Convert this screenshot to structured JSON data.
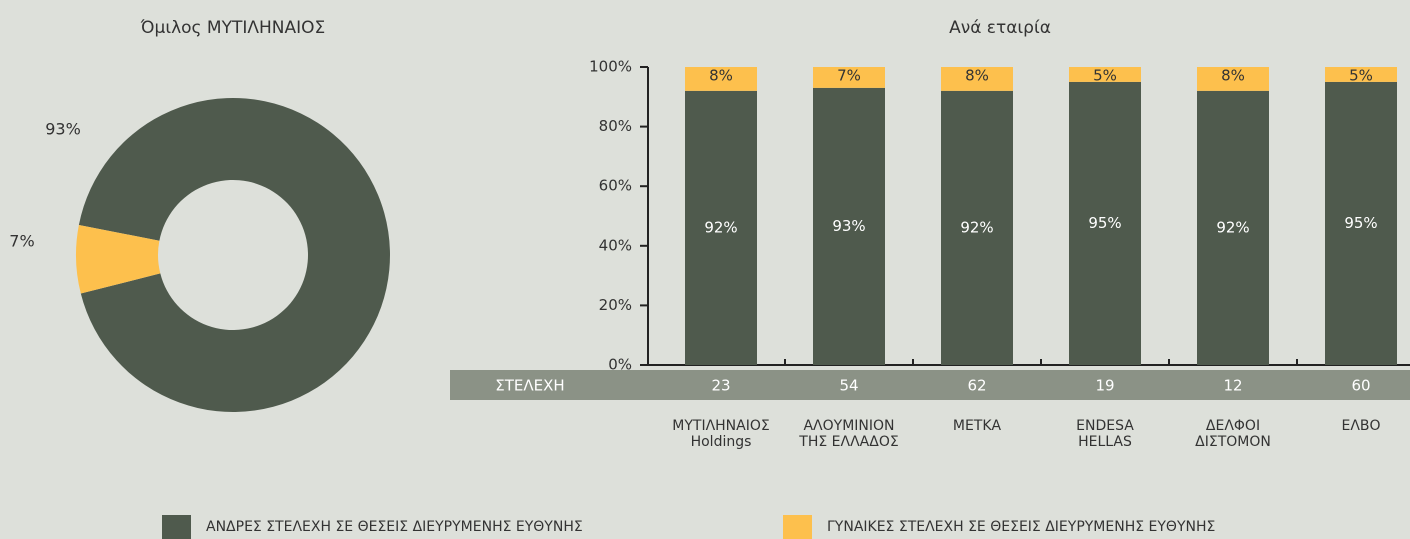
{
  "chart_data": [
    {
      "type": "pie",
      "title": "Όμιλος ΜΥΤΙΛΗΝΑΙΟΣ",
      "values": [
        93,
        7
      ],
      "value_labels": [
        "93%",
        "7%"
      ],
      "colors": [
        "#4f5a4d",
        "#fdc04d"
      ],
      "donut": true
    },
    {
      "type": "bar",
      "stacked": true,
      "title": "Ανά εταιρία",
      "categories": [
        "ΜΥΤΙΛΗΝΑΙΟΣ\nHoldings",
        "ΑΛΟΥΜΙΝΙΟΝ\nΤΗΣ ΕΛΛΑΔΟΣ",
        "ΜΕΤΚΑ",
        "ENDESA\nHELLAS",
        "ΔΕΛΦΟΙ\nΔΙΣΤΟΜΟΝ",
        "ΕΛΒΟ"
      ],
      "series": [
        {
          "name": "ΑΝΔΡΕΣ ΣΤΕΛΕΧΗ ΣΕ ΘΕΣΕΙΣ ΔΙΕΥΡΥΜΕΝΗΣ ΕΥΘΥΝΗΣ",
          "color": "#4f5a4d",
          "values": [
            92,
            93,
            92,
            95,
            92,
            95
          ],
          "value_labels": [
            "92%",
            "93%",
            "92%",
            "95%",
            "92%",
            "95%"
          ]
        },
        {
          "name": "ΓΥΝΑΙΚΕΣ ΣΤΕΛΕΧΗ ΣΕ ΘΕΣΕΙΣ ΔΙΕΥΡΥΜΕΝΗΣ ΕΥΘΥΝΗΣ",
          "color": "#fdc04d",
          "values": [
            8,
            7,
            8,
            5,
            8,
            5
          ],
          "value_labels": [
            "8%",
            "7%",
            "8%",
            "5%",
            "8%",
            "5%"
          ]
        }
      ],
      "ylim": [
        0,
        100
      ],
      "yticks": [
        {
          "value": 0,
          "label": "0%"
        },
        {
          "value": 20,
          "label": "20%"
        },
        {
          "value": 40,
          "label": "40%"
        },
        {
          "value": 60,
          "label": "60%"
        },
        {
          "value": 80,
          "label": "80%"
        },
        {
          "value": 100,
          "label": "100%"
        }
      ],
      "row_label": "ΣΤΕΛΕΧΗ",
      "row_values": [
        23,
        54,
        62,
        19,
        12,
        60
      ]
    }
  ]
}
